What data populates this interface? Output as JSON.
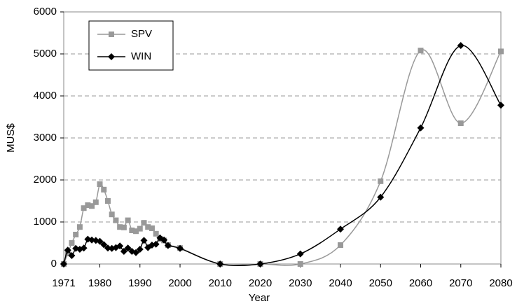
{
  "chart_data": {
    "type": "line",
    "x_label": "Year",
    "y_label": "MUS$",
    "x": [
      1971,
      1972,
      1973,
      1974,
      1975,
      1976,
      1977,
      1978,
      1979,
      1980,
      1981,
      1982,
      1983,
      1984,
      1985,
      1986,
      1987,
      1988,
      1989,
      1990,
      1991,
      1992,
      1993,
      1994,
      1995,
      1996,
      1997,
      2000,
      2010,
      2020,
      2030,
      2040,
      2050,
      2060,
      2070,
      2080
    ],
    "series": [
      {
        "name": "SPV",
        "color": "#999999",
        "marker": "square",
        "values": [
          0,
          250,
          500,
          700,
          880,
          1330,
          1400,
          1380,
          1470,
          1900,
          1770,
          1500,
          1180,
          1040,
          880,
          870,
          1040,
          800,
          780,
          840,
          980,
          880,
          850,
          720,
          600,
          560,
          450,
          380,
          0,
          0,
          0,
          450,
          1970,
          5080,
          3350,
          5060
        ]
      },
      {
        "name": "WIN",
        "color": "#000000",
        "marker": "diamond",
        "values": [
          0,
          330,
          200,
          370,
          350,
          380,
          590,
          570,
          560,
          540,
          460,
          380,
          370,
          390,
          430,
          300,
          380,
          300,
          270,
          350,
          560,
          390,
          450,
          470,
          620,
          570,
          440,
          370,
          0,
          0,
          240,
          830,
          1590,
          3240,
          5200,
          3780
        ]
      }
    ],
    "xlim": [
      1971,
      2080
    ],
    "xticks": [
      1971,
      1980,
      1990,
      2000,
      2010,
      2020,
      2030,
      2040,
      2050,
      2060,
      2070,
      2080
    ],
    "ylim": [
      0,
      6000
    ],
    "yticks": [
      0,
      1000,
      2000,
      3000,
      4000,
      5000,
      6000
    ],
    "grid": true,
    "legend": "upper left"
  }
}
